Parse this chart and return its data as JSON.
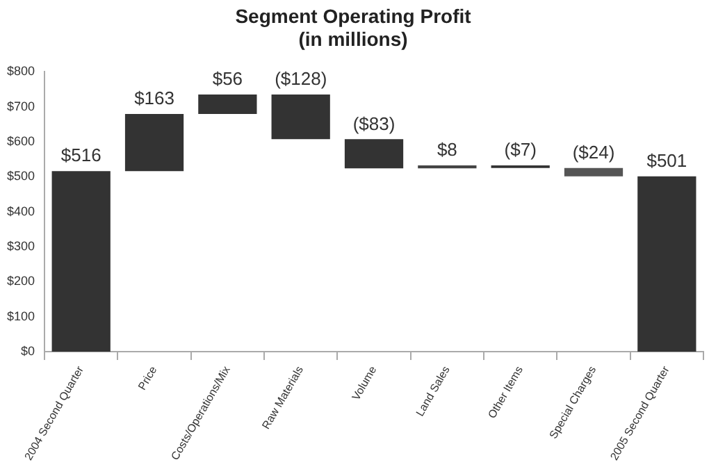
{
  "chart_data": {
    "type": "bar",
    "title": "Segment Operating Profit",
    "subtitle": "(in millions)",
    "categories": [
      "2004 Second Quarter",
      "Price",
      "Costs/Operations/Mix",
      "Raw Materials",
      "Volume",
      "Land Sales",
      "Other Items",
      "Special Charges",
      "2005 Second Quarter"
    ],
    "values": [
      516,
      163,
      56,
      -128,
      -83,
      8,
      -7,
      -24,
      501
    ],
    "base": [
      0,
      516,
      679,
      735,
      607,
      524,
      532,
      525,
      0
    ],
    "colors": [
      "#333333",
      "#333333",
      "#333333",
      "#333333",
      "#333333",
      "#444444",
      "#333333",
      "#555555",
      "#333333"
    ],
    "value_labels": [
      "$516",
      "$163",
      "$56",
      "($128)",
      "($83)",
      "$8",
      "($7)",
      "($24)",
      "$501"
    ],
    "ylim": [
      0,
      800
    ],
    "yticks": [
      {
        "value": 0,
        "label": "$0"
      },
      {
        "value": 100,
        "label": "$100"
      },
      {
        "value": 200,
        "label": "$200"
      },
      {
        "value": 300,
        "label": "$300"
      },
      {
        "value": 400,
        "label": "$400"
      },
      {
        "value": 500,
        "label": "$500"
      },
      {
        "value": 600,
        "label": "$600"
      },
      {
        "value": 700,
        "label": "$700"
      },
      {
        "value": 800,
        "label": "$800"
      }
    ],
    "grid": false,
    "legend": false
  }
}
